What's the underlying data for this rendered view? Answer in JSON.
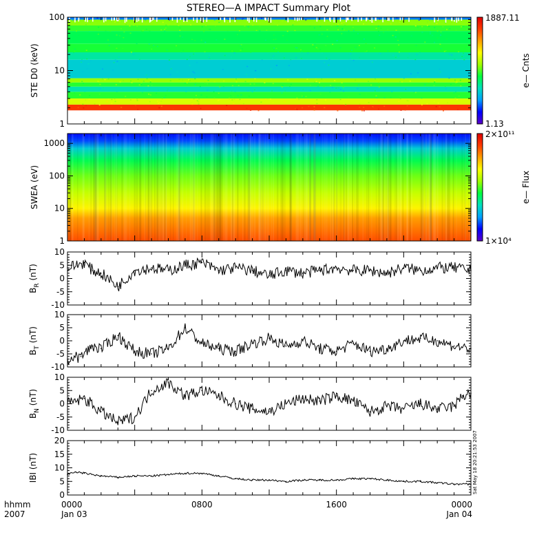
{
  "title": "STEREO—A IMPACT Summary Plot",
  "timestamp": "Sat May 18 20:21:53 2007",
  "footer": {
    "left_top": "hhmm",
    "left_bottom": "2007",
    "x_ticks": [
      "0000",
      "0800",
      "1600",
      "0000"
    ],
    "date_labels": [
      "Jan 03",
      "Jan 04"
    ]
  },
  "colors": {
    "axis": "#000000",
    "trace": "#000000",
    "colormap": [
      "#5a00c8",
      "#0000ff",
      "#00a0ff",
      "#00e0c0",
      "#00ff40",
      "#a0ff00",
      "#ffff00",
      "#ffa000",
      "#ff3c00",
      "#e00000"
    ]
  },
  "chart_data": [
    {
      "type": "heatmap",
      "ylabel": "STE D0 (keV)",
      "yscale": "log",
      "ylim": [
        1,
        100
      ],
      "yticks": [
        "1",
        "10",
        "100"
      ],
      "colorbar": {
        "label": "e— Cnts",
        "max": "1887.11",
        "min": "1.13"
      },
      "x": [
        "0000",
        "0800",
        "1600",
        "0000"
      ],
      "bands": [
        {
          "from": 1.8,
          "to": 2.3,
          "level": 0.9
        },
        {
          "from": 2.3,
          "to": 3.0,
          "level": 0.62
        },
        {
          "from": 3.0,
          "to": 4.0,
          "level": 0.47
        },
        {
          "from": 4.0,
          "to": 5.0,
          "level": 0.35
        },
        {
          "from": 5.0,
          "to": 6.0,
          "level": 0.47
        },
        {
          "from": 6.0,
          "to": 7.2,
          "level": 0.55
        },
        {
          "from": 7.2,
          "to": 16.0,
          "level": 0.3
        },
        {
          "from": 16.0,
          "to": 22.0,
          "level": 0.36
        },
        {
          "from": 22.0,
          "to": 32.0,
          "level": 0.46
        },
        {
          "from": 32.0,
          "to": 55.0,
          "level": 0.43
        },
        {
          "from": 55.0,
          "to": 70.0,
          "level": 0.48
        },
        {
          "from": 70.0,
          "to": 90.0,
          "level": 0.54
        },
        {
          "from": 90.0,
          "to": 100.0,
          "level": 0.2
        }
      ]
    },
    {
      "type": "heatmap",
      "ylabel": "SWEA (eV)",
      "yscale": "log",
      "ylim": [
        1,
        2000
      ],
      "yticks": [
        "1",
        "10",
        "100",
        "1000"
      ],
      "colorbar": {
        "label": "e— Flux",
        "max": "2×10¹¹",
        "min": "1×10⁴"
      },
      "x": [
        "0000",
        "0800",
        "1600",
        "0000"
      ],
      "profile": [
        {
          "e": 1,
          "level": 0.87
        },
        {
          "e": 5,
          "level": 0.78
        },
        {
          "e": 10,
          "level": 0.68
        },
        {
          "e": 30,
          "level": 0.6
        },
        {
          "e": 100,
          "level": 0.52
        },
        {
          "e": 300,
          "level": 0.43
        },
        {
          "e": 700,
          "level": 0.3
        },
        {
          "e": 1200,
          "level": 0.16
        },
        {
          "e": 2000,
          "level": 0.12
        }
      ]
    },
    {
      "type": "line",
      "ylabel": "B_R (nT)",
      "label_main": "B",
      "label_sub": "R",
      "label_unit": "(nT)",
      "ylim": [
        -10,
        10
      ],
      "yticks": [
        -10,
        -5,
        0,
        5,
        10
      ],
      "x": [
        0,
        1,
        1.5,
        2,
        3,
        4,
        5,
        6,
        7,
        8,
        9,
        10,
        11,
        12,
        13,
        14,
        15,
        16,
        17,
        18,
        19,
        20,
        21,
        22,
        23,
        24
      ],
      "y": [
        4,
        6,
        3,
        2,
        -3,
        3,
        4,
        3,
        5,
        6,
        3,
        4,
        3,
        1,
        3,
        2,
        3,
        4,
        3,
        3,
        2,
        4,
        3,
        4,
        4,
        3
      ]
    },
    {
      "type": "line",
      "ylabel": "B_T (nT)",
      "label_main": "B",
      "label_sub": "T",
      "label_unit": "(nT)",
      "ylim": [
        -10,
        10
      ],
      "yticks": [
        -10,
        -5,
        0,
        5,
        10
      ],
      "x": [
        0,
        0.8,
        1.5,
        2,
        3,
        4,
        5,
        6,
        7,
        8,
        9,
        10,
        11,
        12,
        13,
        14,
        15,
        16,
        17,
        18,
        19,
        20,
        21,
        22,
        23,
        24
      ],
      "y": [
        -7,
        -6,
        -2,
        -3,
        2,
        -4,
        -5,
        -3,
        5,
        -1,
        -3,
        -4,
        -1,
        1,
        -2,
        0,
        -3,
        -4,
        -1,
        -4,
        -3,
        0,
        1,
        0,
        -2,
        -3
      ]
    },
    {
      "type": "line",
      "ylabel": "B_N (nT)",
      "label_main": "B",
      "label_sub": "N",
      "label_unit": "(nT)",
      "ylim": [
        -10,
        10
      ],
      "yticks": [
        -10,
        -5,
        0,
        5,
        10
      ],
      "x": [
        0,
        1,
        2,
        3,
        4,
        5,
        6,
        7,
        8,
        9,
        10,
        11,
        12,
        13,
        14,
        15,
        16,
        17,
        18,
        19,
        20,
        21,
        22,
        23,
        23.5,
        24
      ],
      "y": [
        0,
        2,
        -3,
        -7,
        -5,
        5,
        8,
        3,
        5,
        3,
        0,
        -2,
        -3,
        0,
        2,
        1,
        3,
        1,
        -3,
        -1,
        -2,
        0,
        -2,
        -1,
        3,
        4
      ]
    },
    {
      "type": "line",
      "ylabel": "|B| (nT)",
      "label_main": "IBI",
      "label_sub": "",
      "label_unit": "(nT)",
      "ylim": [
        0,
        20
      ],
      "yticks": [
        0,
        5,
        10,
        15,
        20
      ],
      "x": [
        0,
        0.5,
        1,
        2,
        3,
        4,
        5,
        6,
        7,
        8,
        9,
        10,
        11,
        12,
        13,
        14,
        15,
        16,
        17,
        18,
        19,
        20,
        21,
        22,
        23,
        24
      ],
      "y": [
        7.5,
        8.5,
        8,
        7,
        6.5,
        7,
        7,
        7.5,
        8,
        8,
        7,
        6,
        5.5,
        5.5,
        5,
        5.5,
        5.5,
        5.5,
        6,
        6,
        5.5,
        5,
        5,
        4.5,
        4,
        4
      ]
    }
  ]
}
